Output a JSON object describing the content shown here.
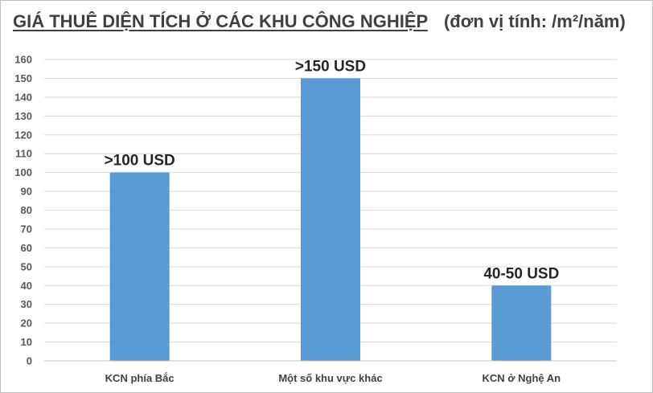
{
  "header": {
    "title": "GIÁ THUÊ DIỆN TÍCH Ở CÁC KHU CÔNG NGHIỆP",
    "subtitle": "(đơn vị tính: /m²/năm)"
  },
  "chart_data": {
    "type": "bar",
    "title": "GIÁ THUÊ DIỆN TÍCH Ở CÁC KHU CÔNG NGHIỆP",
    "subtitle": "(đơn vị tính: /m²/năm)",
    "categories": [
      "KCN phía Bắc",
      "Một số khu vực khác",
      "KCN ở Nghệ An"
    ],
    "values": [
      100,
      150,
      40
    ],
    "data_labels": [
      ">100 USD",
      ">150 USD",
      "40-50 USD"
    ],
    "ylim": [
      0,
      160
    ],
    "yticks": [
      0,
      10,
      20,
      30,
      40,
      50,
      60,
      70,
      80,
      90,
      100,
      110,
      120,
      130,
      140,
      150,
      160
    ],
    "grid": true,
    "legend": "none",
    "bar_color": "#5b9bd5",
    "grid_color": "#d9d9d9"
  }
}
